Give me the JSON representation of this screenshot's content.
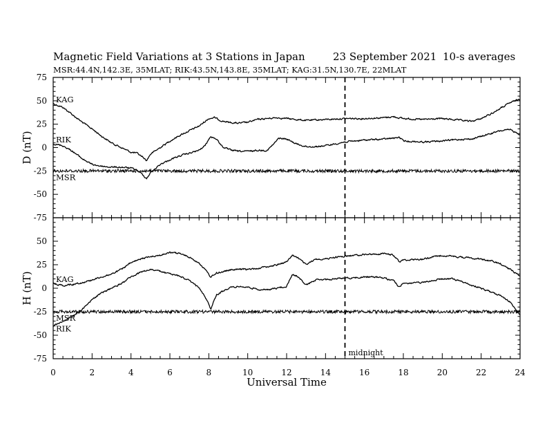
{
  "title": "Magnetic Field Variations at 3 Stations in Japan",
  "date": "23 September 2021",
  "averaging": "10-s averages",
  "subtitle": "MSR:44.4N,142.3E, 35MLAT;  RIK:43.5N,143.8E, 35MLAT;  KAG:31.5N,130.7E, 22MLAT",
  "annotation": "midnight",
  "colors": {
    "line": "#000000",
    "background": "#ffffff"
  },
  "chart_data": [
    {
      "type": "line",
      "panel": "top",
      "ylabel": "D (nT)",
      "xlabel": "",
      "xlim": [
        0,
        24
      ],
      "ylim": [
        -75,
        75
      ],
      "yticks": [
        75,
        50,
        25,
        0,
        -25,
        -50,
        -75
      ],
      "xticks": [],
      "grid": false,
      "vertical_marker_x": 15,
      "series": [
        {
          "name": "KAG",
          "x": [
            0,
            0.5,
            1,
            1.5,
            2,
            2.5,
            3,
            3.5,
            4,
            4.3,
            4.6,
            4.8,
            5,
            5.5,
            6,
            6.5,
            7,
            7.5,
            8,
            8.3,
            8.6,
            9,
            9.5,
            10,
            10.5,
            11,
            11.5,
            12,
            12.5,
            13,
            14,
            15,
            16,
            17,
            17.5,
            18,
            19,
            20,
            20.5,
            21,
            21.5,
            22,
            22.5,
            23,
            23.5,
            24
          ],
          "y": [
            47,
            43,
            35,
            27,
            20,
            12,
            5,
            0,
            -5,
            -6,
            -10,
            -14,
            -7,
            0,
            7,
            13,
            18,
            23,
            31,
            32,
            29,
            27,
            26,
            27,
            30,
            31,
            32,
            31,
            30,
            29,
            30,
            31,
            31,
            32,
            33,
            31,
            30,
            31,
            30,
            29,
            28,
            31,
            36,
            42,
            48,
            52
          ]
        },
        {
          "name": "RIK",
          "x": [
            0,
            0.5,
            1,
            1.5,
            2,
            2.5,
            3,
            3.5,
            4,
            4.3,
            4.6,
            4.8,
            5,
            5.5,
            6,
            6.5,
            7,
            7.5,
            7.8,
            8.1,
            8.4,
            8.7,
            9,
            9.5,
            10,
            10.5,
            11,
            11.3,
            11.6,
            12,
            12.5,
            13,
            13.5,
            14,
            15,
            16,
            17,
            17.5,
            17.8,
            18,
            19,
            20,
            20.5,
            21,
            21.5,
            22,
            22.5,
            23,
            23.5,
            24
          ],
          "y": [
            4,
            2,
            -4,
            -12,
            -18,
            -20,
            -21,
            -21,
            -22,
            -24,
            -29,
            -33,
            -27,
            -18,
            -13,
            -9,
            -6,
            -3,
            2,
            12,
            9,
            1,
            -2,
            -4,
            -4,
            -3,
            -3,
            3,
            10,
            9,
            4,
            1,
            1,
            2,
            6,
            8,
            9,
            10,
            11,
            7,
            6,
            7,
            8,
            9,
            9,
            12,
            15,
            18,
            19,
            14
          ]
        },
        {
          "name": "MSR",
          "x": [
            0,
            2,
            4,
            6,
            8,
            10,
            12,
            14,
            16,
            18,
            20,
            22,
            24
          ],
          "y": [
            -25,
            -25,
            -25,
            -25,
            -25,
            -25,
            -25,
            -25,
            -25,
            -25,
            -25,
            -25,
            -25
          ]
        }
      ]
    },
    {
      "type": "line",
      "panel": "bottom",
      "ylabel": "H (nT)",
      "xlabel": "Universal Time",
      "xlim": [
        0,
        24
      ],
      "ylim": [
        -75,
        75
      ],
      "yticks": [
        50,
        25,
        0,
        -25,
        -50,
        -75
      ],
      "xticks": [
        0,
        2,
        4,
        6,
        8,
        10,
        12,
        14,
        16,
        18,
        20,
        22,
        24
      ],
      "grid": false,
      "vertical_marker_x": 15,
      "series": [
        {
          "name": "KAG",
          "x": [
            0,
            0.5,
            1,
            1.5,
            2,
            2.5,
            3,
            3.5,
            4,
            4.5,
            5,
            5.5,
            6,
            6.5,
            7,
            7.5,
            7.8,
            8.1,
            8.4,
            9,
            9.5,
            10,
            10.5,
            11,
            11.5,
            12,
            12.3,
            12.6,
            13,
            13.5,
            14,
            14.5,
            15,
            15.5,
            16,
            16.5,
            17,
            17.5,
            17.8,
            18,
            19,
            19.5,
            20,
            20.5,
            21,
            21.5,
            22,
            22.5,
            23,
            23.5,
            24
          ],
          "y": [
            5,
            3,
            4,
            6,
            9,
            12,
            15,
            20,
            27,
            31,
            34,
            35,
            38,
            37,
            33,
            27,
            20,
            12,
            16,
            19,
            20,
            20,
            21,
            23,
            25,
            28,
            35,
            32,
            25,
            31,
            31,
            33,
            34,
            35,
            36,
            36,
            37,
            35,
            28,
            30,
            31,
            33,
            35,
            34,
            33,
            32,
            31,
            29,
            26,
            20,
            13
          ]
        },
        {
          "name": "RIK",
          "x": [
            0,
            0.5,
            1,
            1.5,
            2,
            2.5,
            3,
            3.5,
            4,
            4.5,
            5,
            5.5,
            6,
            6.5,
            7,
            7.5,
            7.8,
            8.1,
            8.4,
            9,
            9.5,
            10,
            10.5,
            11,
            11.5,
            12,
            12.3,
            12.6,
            13,
            13.5,
            14,
            14.5,
            15,
            15.5,
            16,
            16.5,
            17,
            17.5,
            17.8,
            18,
            19,
            19.5,
            20,
            20.5,
            21,
            21.5,
            22,
            22.5,
            23,
            23.5,
            24
          ],
          "y": [
            -40,
            -35,
            -30,
            -22,
            -12,
            -5,
            0,
            5,
            12,
            17,
            20,
            18,
            15,
            13,
            8,
            0,
            -8,
            -22,
            -7,
            0,
            2,
            1,
            -1,
            -2,
            0,
            2,
            15,
            12,
            3,
            9,
            9,
            10,
            11,
            11,
            12,
            12,
            11,
            8,
            1,
            5,
            6,
            8,
            10,
            10,
            7,
            3,
            0,
            -4,
            -8,
            -15,
            -28
          ]
        },
        {
          "name": "MSR",
          "x": [
            0,
            2,
            4,
            6,
            8,
            10,
            12,
            14,
            16,
            18,
            20,
            22,
            24
          ],
          "y": [
            -25,
            -25,
            -25,
            -25,
            -25,
            -25,
            -25,
            -25,
            -25,
            -25,
            -25,
            -25,
            -25
          ]
        }
      ]
    }
  ]
}
